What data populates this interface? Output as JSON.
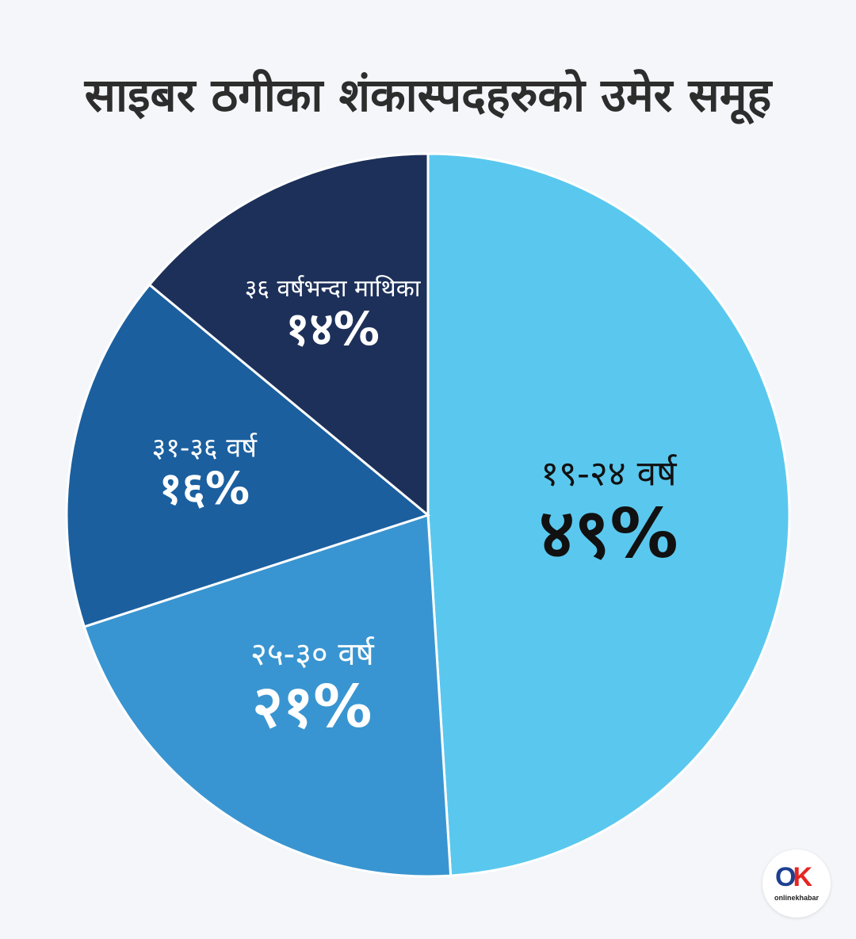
{
  "chart_data": {
    "type": "pie",
    "title": "साइबर ठगीका शंकास्पदहरुको उमेर समूह",
    "slices": [
      {
        "label": "१९-२४ वर्ष",
        "value_label": "४९%",
        "value": 49,
        "color": "#5ac8ee"
      },
      {
        "label": "२५-३० वर्ष",
        "value_label": "२१%",
        "value": 21,
        "color": "#3995d1"
      },
      {
        "label": "३१-३६ वर्ष",
        "value_label": "१६%",
        "value": 16,
        "color": "#1b5f9f"
      },
      {
        "label": "३६ वर्षभन्दा माथिका",
        "value_label": "१४%",
        "value": 14,
        "color": "#1d305a"
      }
    ]
  },
  "logo": {
    "text": "onlinekhabar"
  }
}
